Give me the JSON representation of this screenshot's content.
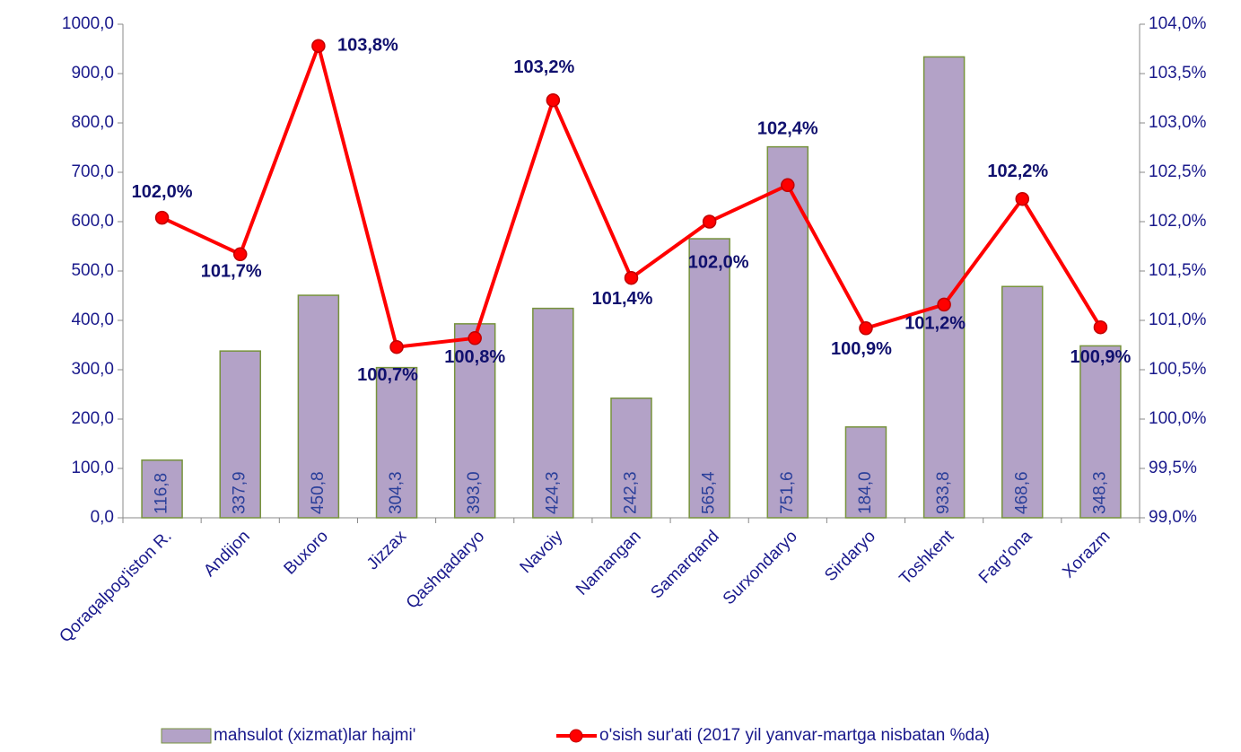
{
  "chart_data": {
    "type": "bar_line",
    "categories": [
      "Qoraqalpog'iston R.",
      "Andijon",
      "Buxoro",
      "Jizzax",
      "Qashqadaryo",
      "Navoiy",
      "Namangan",
      "Samarqand",
      "Surxondaryo",
      "Sirdaryo",
      "Toshkent",
      "Farg'ona",
      "Xorazm"
    ],
    "series": [
      {
        "name": "mahsulot (xizmat)lar hajmi'",
        "type": "bar",
        "color": "#b3a2c7",
        "edge_color": "#77933c",
        "values": [
          116.8,
          337.9,
          450.8,
          304.3,
          393.0,
          424.3,
          242.3,
          565.4,
          751.6,
          184.0,
          933.8,
          468.6,
          348.3
        ],
        "value_labels": [
          "116,8",
          "337,9",
          "450,8",
          "304,3",
          "393,0",
          "424,3",
          "242,3",
          "565,4",
          "751,6",
          "184,0",
          "933,8",
          "468,6",
          "348,3"
        ]
      },
      {
        "name": "o'sish sur'ati (2017 yil yanvar-martga nisbatan %da)",
        "type": "line",
        "axis": "y2",
        "color": "#ff0000",
        "values": [
          102.04,
          101.67,
          103.78,
          100.73,
          100.82,
          103.23,
          101.43,
          102.0,
          102.37,
          100.92,
          101.16,
          102.23,
          100.93
        ],
        "value_labels": [
          "102,0%",
          "101,7%",
          "103,8%",
          "100,7%",
          "100,8%",
          "103,2%",
          "101,4%",
          "102,0%",
          "102,4%",
          "100,9%",
          "101,2%",
          "102,2%",
          "100,9%"
        ]
      }
    ],
    "ylim": [
      0,
      1000
    ],
    "yticks": [
      {
        "value": 0,
        "label": "0,0"
      },
      {
        "value": 100,
        "label": "100,0"
      },
      {
        "value": 200,
        "label": "200,0"
      },
      {
        "value": 300,
        "label": "300,0"
      },
      {
        "value": 400,
        "label": "400,0"
      },
      {
        "value": 500,
        "label": "500,0"
      },
      {
        "value": 600,
        "label": "600,0"
      },
      {
        "value": 700,
        "label": "700,0"
      },
      {
        "value": 800,
        "label": "800,0"
      },
      {
        "value": 900,
        "label": "900,0"
      },
      {
        "value": 1000,
        "label": "1000,0"
      }
    ],
    "y2lim": [
      99,
      104
    ],
    "y2ticks": [
      {
        "value": 99,
        "label": "99,0%"
      },
      {
        "value": 99.5,
        "label": "99,5%"
      },
      {
        "value": 100,
        "label": "100,0%"
      },
      {
        "value": 100.5,
        "label": "100,5%"
      },
      {
        "value": 101,
        "label": "101,0%"
      },
      {
        "value": 101.5,
        "label": "101,5%"
      },
      {
        "value": 102,
        "label": "102,0%"
      },
      {
        "value": 102.5,
        "label": "102,5%"
      },
      {
        "value": 103,
        "label": "103,0%"
      },
      {
        "value": 103.5,
        "label": "103,5%"
      },
      {
        "value": 104,
        "label": "104,0%"
      }
    ],
    "legend": "bottom"
  }
}
